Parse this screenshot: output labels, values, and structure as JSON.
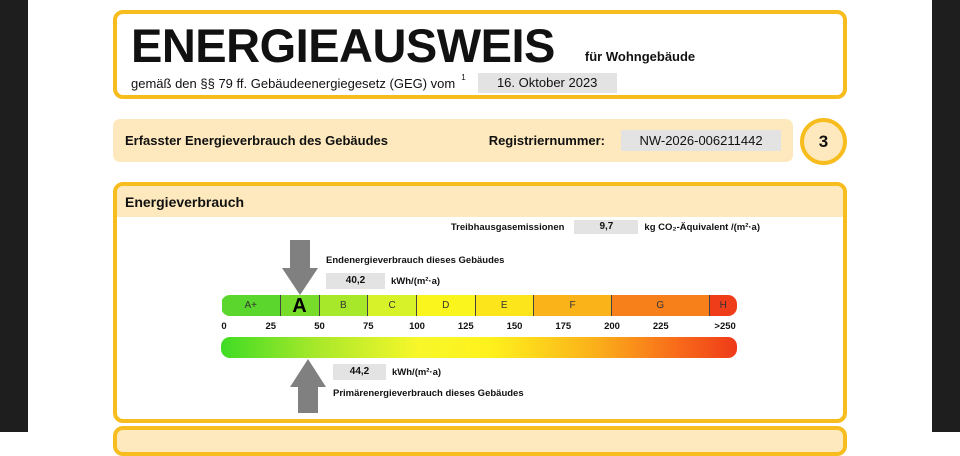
{
  "header": {
    "title": "ENERGIEAUSWEIS",
    "subtitle": "für Wohngebäude",
    "legal_basis": "gemäß den §§ 79 ff. Gebäudeenergiegesetz (GEG) vom",
    "footnote": "1",
    "date": "16. Oktober 2023"
  },
  "info_row": {
    "label": "Erfasster Energieverbrauch des Gebäudes",
    "reg_label": "Registriernummer:",
    "reg_number": "NW-2026-006211442",
    "page_number": "3"
  },
  "section": {
    "title": "Energieverbrauch",
    "ghg_label": "Treibhausgasemissionen",
    "ghg_value": "9,7",
    "ghg_unit": "kg CO₂-Äquivalent /(m²·a)",
    "final_label": "Endenergieverbrauch dieses Gebäudes",
    "final_value": "40,2",
    "final_unit": "kWh/(m²·a)",
    "primary_value": "44,2",
    "primary_unit": "kWh/(m²·a)",
    "primary_label": "Primärenergieverbrauch dieses Gebäudes",
    "final_value_num": 40.2,
    "primary_value_num": 44.2,
    "current_class": "A"
  },
  "scale": {
    "classes": [
      {
        "label": "A+",
        "from": 0,
        "to": 30,
        "color": "#5ad62c"
      },
      {
        "label": "A",
        "from": 30,
        "to": 50,
        "color": "#78dc2a"
      },
      {
        "label": "B",
        "from": 50,
        "to": 75,
        "color": "#a8e82a"
      },
      {
        "label": "C",
        "from": 75,
        "to": 100,
        "color": "#d8f22a"
      },
      {
        "label": "D",
        "from": 100,
        "to": 130,
        "color": "#fbf51e"
      },
      {
        "label": "E",
        "from": 130,
        "to": 160,
        "color": "#fde51c"
      },
      {
        "label": "F",
        "from": 160,
        "to": 200,
        "color": "#fbb31a"
      },
      {
        "label": "G",
        "from": 200,
        "to": 250,
        "color": "#f8801a"
      },
      {
        "label": "H",
        "from": 250,
        "to": 265,
        "color": "#ef3d1a"
      }
    ],
    "ticks": [
      {
        "value": 0,
        "label": "0"
      },
      {
        "value": 25,
        "label": "25"
      },
      {
        "value": 50,
        "label": "50"
      },
      {
        "value": 75,
        "label": "75"
      },
      {
        "value": 100,
        "label": "100"
      },
      {
        "value": 125,
        "label": "125"
      },
      {
        "value": 150,
        "label": "150"
      },
      {
        "value": 175,
        "label": "175"
      },
      {
        "value": 200,
        "label": "200"
      },
      {
        "value": 225,
        "label": "225"
      },
      {
        "value": 258,
        "label": ">250"
      }
    ]
  },
  "colors": {
    "accent": "#f7bd1e",
    "band": "#fde9bd",
    "field": "#e3e3e3",
    "arrow": "#808080"
  }
}
